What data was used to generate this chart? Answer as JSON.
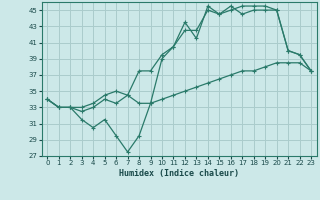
{
  "xlabel": "Humidex (Indice chaleur)",
  "bg_color": "#cce8e8",
  "grid_color": "#aacccc",
  "line_color": "#2a7a6a",
  "xlim": [
    -0.5,
    23.5
  ],
  "ylim": [
    27,
    46
  ],
  "yticks": [
    27,
    29,
    31,
    33,
    35,
    37,
    39,
    41,
    43,
    45
  ],
  "xticks": [
    0,
    1,
    2,
    3,
    4,
    5,
    6,
    7,
    8,
    9,
    10,
    11,
    12,
    13,
    14,
    15,
    16,
    17,
    18,
    19,
    20,
    21,
    22,
    23
  ],
  "series1": [
    34,
    33,
    33,
    31.5,
    30.5,
    31.5,
    29.5,
    27.5,
    29.5,
    33.5,
    39,
    40.5,
    43.5,
    41.5,
    45.5,
    44.5,
    45.5,
    44.5,
    45,
    45,
    45,
    40,
    39.5,
    37.5
  ],
  "series2": [
    34,
    33,
    33,
    32.5,
    33,
    34,
    33.5,
    34.5,
    37.5,
    37.5,
    39.5,
    40.5,
    42.5,
    42.5,
    45,
    44.5,
    45,
    45.5,
    45.5,
    45.5,
    45,
    40,
    39.5,
    37.5
  ],
  "series3": [
    34,
    33,
    33,
    33,
    33.5,
    34.5,
    35,
    34.5,
    33.5,
    33.5,
    34,
    34.5,
    35,
    35.5,
    36,
    36.5,
    37,
    37.5,
    37.5,
    38,
    38.5,
    38.5,
    38.5,
    37.5
  ]
}
